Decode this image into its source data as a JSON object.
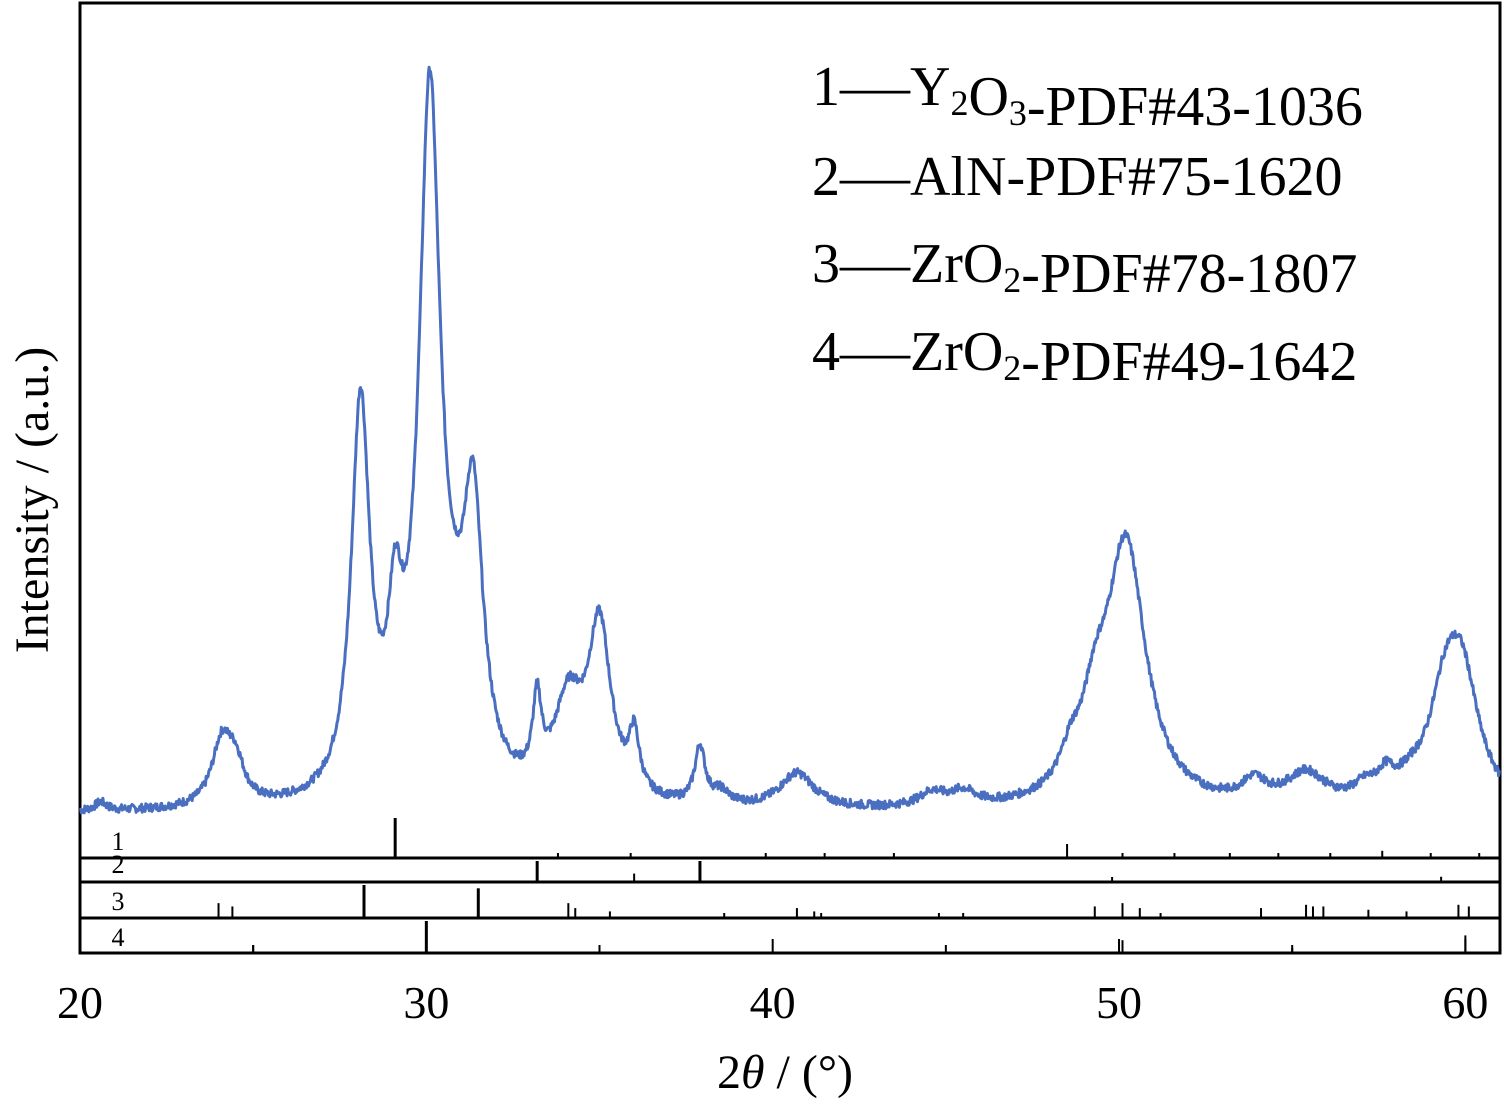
{
  "chart_data": {
    "type": "line",
    "xlabel": "2θ / (°)",
    "xlabel_prefix": "2",
    "xlabel_symbol": "θ",
    "xlabel_suffix": " / (°)",
    "ylabel": "Intensity / (a.u.)",
    "xlim": [
      20,
      61
    ],
    "ylim": [
      0,
      100
    ],
    "x_ticks": [
      20,
      30,
      40,
      50,
      60
    ],
    "x_tick_labels": [
      "20",
      "30",
      "40",
      "50",
      "60"
    ],
    "line_color": "#4a6fc0",
    "legend": [
      {
        "num": "1",
        "dash": "—",
        "parts": [
          [
            "Y",
            ""
          ],
          [
            "2",
            "sub"
          ],
          [
            "O",
            ""
          ],
          [
            "3",
            "sub"
          ],
          [
            "-PDF#43-1036",
            ""
          ]
        ]
      },
      {
        "num": "2",
        "dash": "—",
        "parts": [
          [
            "AlN-PDF#75-1620",
            ""
          ]
        ]
      },
      {
        "num": "3",
        "dash": "—",
        "parts": [
          [
            "ZrO",
            ""
          ],
          [
            "2",
            "sub"
          ],
          [
            "-PDF#78-1807",
            ""
          ]
        ]
      },
      {
        "num": "4",
        "dash": "—",
        "parts": [
          [
            "ZrO",
            ""
          ],
          [
            "2",
            "sub"
          ],
          [
            "-PDF#49-1642",
            ""
          ]
        ]
      }
    ],
    "series": {
      "baseline": 2,
      "peaks": [
        {
          "x": 20.6,
          "h": 1.2,
          "w": 0.2
        },
        {
          "x": 24.1,
          "h": 9,
          "w": 0.35
        },
        {
          "x": 24.5,
          "h": 5,
          "w": 0.3
        },
        {
          "x": 28.1,
          "h": 55,
          "w": 0.32
        },
        {
          "x": 29.1,
          "h": 19,
          "w": 0.25
        },
        {
          "x": 30.1,
          "h": 98,
          "w": 0.38
        },
        {
          "x": 30.8,
          "h": 6,
          "w": 0.4
        },
        {
          "x": 31.35,
          "h": 38,
          "w": 0.35
        },
        {
          "x": 33.2,
          "h": 11,
          "w": 0.15
        },
        {
          "x": 34.1,
          "h": 13,
          "w": 0.5
        },
        {
          "x": 35.0,
          "h": 24,
          "w": 0.4
        },
        {
          "x": 36.0,
          "h": 8,
          "w": 0.18
        },
        {
          "x": 37.9,
          "h": 8,
          "w": 0.18
        },
        {
          "x": 38.5,
          "h": 1.8,
          "w": 0.3
        },
        {
          "x": 40.7,
          "h": 5,
          "w": 0.6
        },
        {
          "x": 44.6,
          "h": 2,
          "w": 0.45
        },
        {
          "x": 45.5,
          "h": 2,
          "w": 0.45
        },
        {
          "x": 48.6,
          "h": 4,
          "w": 0.35
        },
        {
          "x": 49.3,
          "h": 9,
          "w": 0.45
        },
        {
          "x": 50.2,
          "h": 37,
          "w": 0.7
        },
        {
          "x": 53.9,
          "h": 3,
          "w": 0.45
        },
        {
          "x": 55.4,
          "h": 4.5,
          "w": 0.7
        },
        {
          "x": 57.1,
          "h": 2,
          "w": 0.4
        },
        {
          "x": 57.7,
          "h": 3,
          "w": 0.3
        },
        {
          "x": 58.4,
          "h": 2,
          "w": 0.5
        },
        {
          "x": 59.4,
          "h": 12,
          "w": 0.55
        },
        {
          "x": 59.9,
          "h": 17,
          "w": 0.6
        }
      ]
    },
    "reference_patterns": [
      {
        "label": "1",
        "lines": [
          [
            29.1,
            100
          ],
          [
            33.8,
            12
          ],
          [
            35.9,
            5
          ],
          [
            39.8,
            5
          ],
          [
            41.5,
            5
          ],
          [
            43.5,
            4
          ],
          [
            48.5,
            35
          ],
          [
            50.1,
            5
          ],
          [
            51.6,
            4
          ],
          [
            53.2,
            5
          ],
          [
            54.6,
            4
          ],
          [
            56.1,
            5
          ],
          [
            57.6,
            18
          ],
          [
            59.0,
            5
          ],
          [
            60.4,
            5
          ]
        ]
      },
      {
        "label": "2",
        "lines": [
          [
            33.2,
            100
          ],
          [
            36.0,
            40
          ],
          [
            37.9,
            100
          ],
          [
            49.8,
            8
          ],
          [
            59.3,
            25
          ]
        ]
      },
      {
        "label": "3",
        "lines": [
          [
            24.0,
            45
          ],
          [
            24.4,
            35
          ],
          [
            28.2,
            100
          ],
          [
            31.5,
            90
          ],
          [
            34.1,
            45
          ],
          [
            34.3,
            30
          ],
          [
            35.3,
            20
          ],
          [
            38.6,
            10
          ],
          [
            40.7,
            30
          ],
          [
            41.2,
            20
          ],
          [
            41.4,
            15
          ],
          [
            44.8,
            15
          ],
          [
            45.5,
            15
          ],
          [
            49.3,
            35
          ],
          [
            50.1,
            45
          ],
          [
            50.6,
            30
          ],
          [
            51.2,
            15
          ],
          [
            54.1,
            30
          ],
          [
            55.4,
            40
          ],
          [
            55.6,
            35
          ],
          [
            55.9,
            35
          ],
          [
            57.2,
            25
          ],
          [
            58.3,
            20
          ],
          [
            59.8,
            40
          ],
          [
            60.1,
            35
          ]
        ]
      },
      {
        "label": "4",
        "lines": [
          [
            25.0,
            25
          ],
          [
            30.0,
            100
          ],
          [
            35.0,
            15
          ],
          [
            50.1,
            40
          ],
          [
            55.0,
            15
          ],
          [
            60.0,
            55
          ]
        ]
      }
    ]
  }
}
